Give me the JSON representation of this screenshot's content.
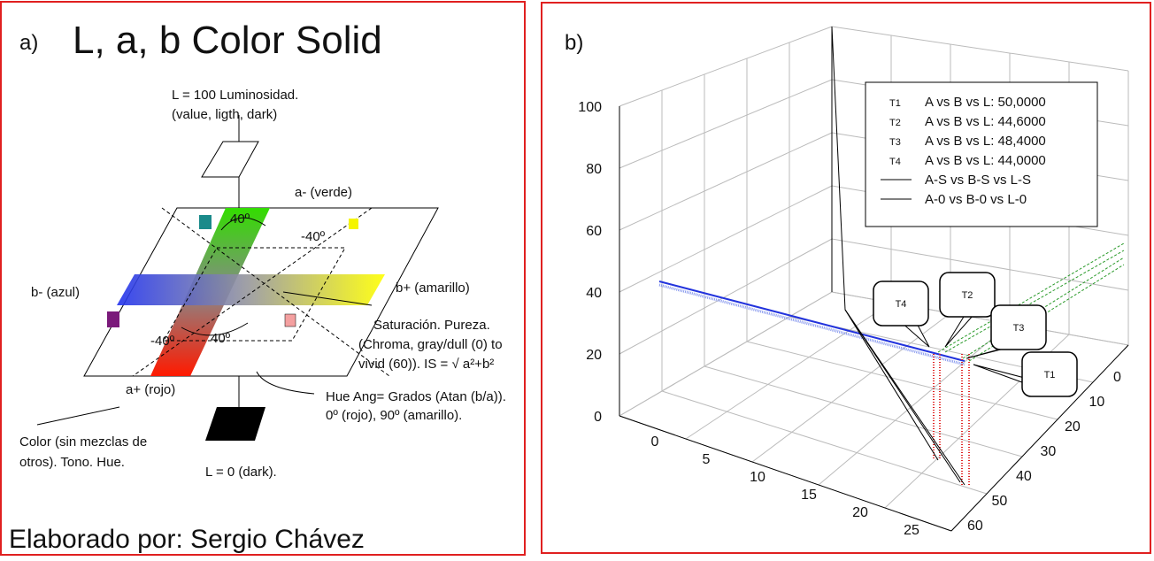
{
  "panel_a": {
    "label": "a)",
    "title": "L, a, b Color Solid",
    "labels": [
      "L = 100 Luminosidad.",
      "(value, ligth, dark)",
      "a- (verde)",
      "40º",
      "-40º",
      "b- (azul)",
      "b+ (amarillo)",
      "Saturación. Pureza.",
      "(Chroma, gray/dull (0) to",
      "vivid (60)). IS = √ a²+b²",
      "-40º",
      "40º",
      "a+ (rojo)",
      "Hue Ang= Grados (Atan (b/a)).",
      "0º (rojo), 90º (amarillo).",
      "Color (sin mezclas de",
      "otros). Tono. Hue.",
      "L = 0 (dark)."
    ],
    "footer": "Elaborado por: Sergio Chávez"
  },
  "panel_b": {
    "label": "b)",
    "z_ticks": [
      0,
      20,
      40,
      60,
      80,
      100
    ],
    "x_ticks": [
      0,
      5,
      10,
      15,
      20,
      25
    ],
    "y_ticks": [
      0,
      10,
      20,
      30,
      40,
      50,
      60
    ],
    "legend": [
      {
        "marker": "T1",
        "label": "A vs B vs L: 50,0000"
      },
      {
        "marker": "T2",
        "label": "A vs B vs L: 44,6000"
      },
      {
        "marker": "T3",
        "label": "A vs B vs L: 48,4000"
      },
      {
        "marker": "T4",
        "label": "A vs B vs L: 44,0000"
      },
      {
        "label": "A-S vs B-S vs L-S"
      },
      {
        "label": "A-0 vs B-0 vs L-0"
      }
    ],
    "callouts": [
      "T4",
      "T2",
      "T3",
      "T1"
    ]
  }
}
